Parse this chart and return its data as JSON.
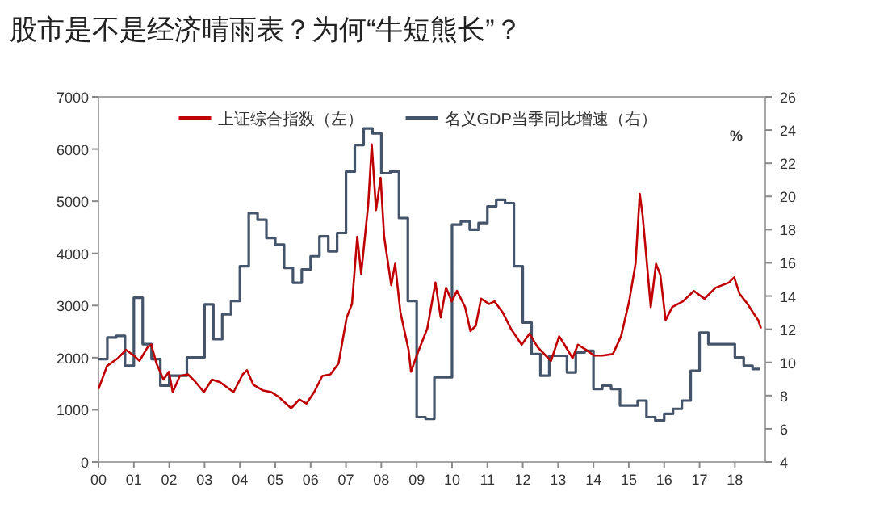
{
  "chart_data": {
    "type": "line",
    "title": "股市是不是经济晴雨表？为何“牛短熊长”？",
    "y2label": "%",
    "legend": "top",
    "grid": false,
    "xlim": [
      2000,
      2018.86
    ],
    "xticks": [
      {
        "value": 2000,
        "label": "00"
      },
      {
        "value": 2001,
        "label": "01"
      },
      {
        "value": 2002,
        "label": "02"
      },
      {
        "value": 2003,
        "label": "03"
      },
      {
        "value": 2004,
        "label": "04"
      },
      {
        "value": 2005,
        "label": "05"
      },
      {
        "value": 2006,
        "label": "06"
      },
      {
        "value": 2007,
        "label": "07"
      },
      {
        "value": 2008,
        "label": "08"
      },
      {
        "value": 2009,
        "label": "09"
      },
      {
        "value": 2010,
        "label": "10"
      },
      {
        "value": 2011,
        "label": "11"
      },
      {
        "value": 2012,
        "label": "12"
      },
      {
        "value": 2013,
        "label": "13"
      },
      {
        "value": 2014,
        "label": "14"
      },
      {
        "value": 2015,
        "label": "15"
      },
      {
        "value": 2016,
        "label": "16"
      },
      {
        "value": 2017,
        "label": "17"
      },
      {
        "value": 2018,
        "label": "18"
      }
    ],
    "ylim": [
      0,
      7000
    ],
    "yticks": [
      0,
      1000,
      2000,
      3000,
      4000,
      5000,
      6000,
      7000
    ],
    "y2lim": [
      4,
      26
    ],
    "y2ticks": [
      4,
      6,
      8,
      10,
      12,
      14,
      16,
      18,
      20,
      22,
      24,
      26
    ],
    "series": [
      {
        "name": "上证综合指数（左）",
        "color": "#c00000",
        "x": [
          2000.0,
          2000.24,
          2000.55,
          2000.78,
          2001.0,
          2001.16,
          2001.39,
          2001.49,
          2001.64,
          2001.84,
          2001.99,
          2002.1,
          2002.3,
          2002.53,
          2002.75,
          2002.98,
          2003.21,
          2003.44,
          2003.82,
          2004.08,
          2004.2,
          2004.38,
          2004.66,
          2004.89,
          2005.11,
          2005.45,
          2005.68,
          2005.88,
          2006.1,
          2006.33,
          2006.56,
          2006.79,
          2007.02,
          2007.17,
          2007.32,
          2007.43,
          2007.63,
          2007.73,
          2007.85,
          2007.98,
          2008.08,
          2008.28,
          2008.39,
          2008.54,
          2008.77,
          2008.84,
          2009.0,
          2009.3,
          2009.53,
          2009.68,
          2009.83,
          2009.99,
          2010.14,
          2010.37,
          2010.52,
          2010.67,
          2010.82,
          2011.05,
          2011.2,
          2011.43,
          2011.66,
          2011.97,
          2012.19,
          2012.42,
          2012.65,
          2012.8,
          2013.03,
          2013.18,
          2013.41,
          2013.56,
          2013.79,
          2014.02,
          2014.25,
          2014.55,
          2014.78,
          2015.01,
          2015.19,
          2015.31,
          2015.39,
          2015.5,
          2015.62,
          2015.77,
          2015.89,
          2016.04,
          2016.23,
          2016.53,
          2016.84,
          2017.14,
          2017.45,
          2017.83,
          2017.98,
          2018.13,
          2018.36,
          2018.51,
          2018.66,
          2018.74
        ],
        "values": [
          1400,
          1840,
          1990,
          2150,
          2040,
          1940,
          2200,
          2250,
          1890,
          1580,
          1730,
          1340,
          1650,
          1680,
          1530,
          1340,
          1580,
          1530,
          1340,
          1680,
          1760,
          1480,
          1370,
          1340,
          1240,
          1030,
          1200,
          1120,
          1340,
          1650,
          1680,
          1890,
          2770,
          3030,
          4320,
          3610,
          4940,
          6090,
          4830,
          5450,
          4320,
          3390,
          3800,
          2870,
          2150,
          1730,
          2040,
          2560,
          3440,
          2770,
          3340,
          3080,
          3280,
          2970,
          2510,
          2610,
          3130,
          3030,
          3080,
          2870,
          2560,
          2250,
          2460,
          2200,
          2040,
          1940,
          2410,
          2250,
          1990,
          2250,
          2150,
          2040,
          2040,
          2070,
          2410,
          3080,
          3800,
          5140,
          4730,
          3900,
          2970,
          3800,
          3590,
          2720,
          2970,
          3080,
          3280,
          3130,
          3340,
          3440,
          3540,
          3230,
          3030,
          2870,
          2720,
          2560
        ]
      },
      {
        "name": "名义GDP当季同比增速（右）",
        "type": "step",
        "axis": "y2",
        "color": "#44546a",
        "x": [
          2000.0,
          2000.25,
          2000.5,
          2000.75,
          2001.0,
          2001.25,
          2001.5,
          2001.75,
          2002.0,
          2002.25,
          2002.5,
          2002.75,
          2003.0,
          2003.25,
          2003.5,
          2003.75,
          2004.0,
          2004.25,
          2004.5,
          2004.75,
          2005.0,
          2005.25,
          2005.5,
          2005.75,
          2006.0,
          2006.25,
          2006.5,
          2006.75,
          2007.0,
          2007.25,
          2007.5,
          2007.75,
          2008.0,
          2008.25,
          2008.5,
          2008.75,
          2009.0,
          2009.25,
          2009.5,
          2009.75,
          2010.0,
          2010.25,
          2010.5,
          2010.75,
          2011.0,
          2011.25,
          2011.5,
          2011.75,
          2012.0,
          2012.25,
          2012.5,
          2012.75,
          2013.0,
          2013.25,
          2013.5,
          2013.75,
          2014.0,
          2014.25,
          2014.5,
          2014.75,
          2015.0,
          2015.25,
          2015.5,
          2015.75,
          2016.0,
          2016.25,
          2016.5,
          2016.75,
          2017.0,
          2017.25,
          2017.5,
          2017.75,
          2018.0,
          2018.25,
          2018.5,
          2018.7
        ],
        "values": [
          10.2,
          11.5,
          11.6,
          9.8,
          13.9,
          11.1,
          10.2,
          8.6,
          9.2,
          9.2,
          10.3,
          10.3,
          13.5,
          11.4,
          12.9,
          13.7,
          15.8,
          19.0,
          18.6,
          17.5,
          17.1,
          15.7,
          14.8,
          15.6,
          16.4,
          17.6,
          16.7,
          17.8,
          21.5,
          23.1,
          24.1,
          23.8,
          21.4,
          21.5,
          18.7,
          13.7,
          6.7,
          6.6,
          9.1,
          9.1,
          18.3,
          18.5,
          18.0,
          18.4,
          19.4,
          19.8,
          19.6,
          15.8,
          12.4,
          10.5,
          9.2,
          10.4,
          10.4,
          9.4,
          10.6,
          10.7,
          8.4,
          8.6,
          8.4,
          7.4,
          7.4,
          7.7,
          6.7,
          6.5,
          6.9,
          7.2,
          7.7,
          9.5,
          11.8,
          11.1,
          11.1,
          11.1,
          10.3,
          9.8,
          9.6,
          9.6
        ]
      }
    ]
  }
}
